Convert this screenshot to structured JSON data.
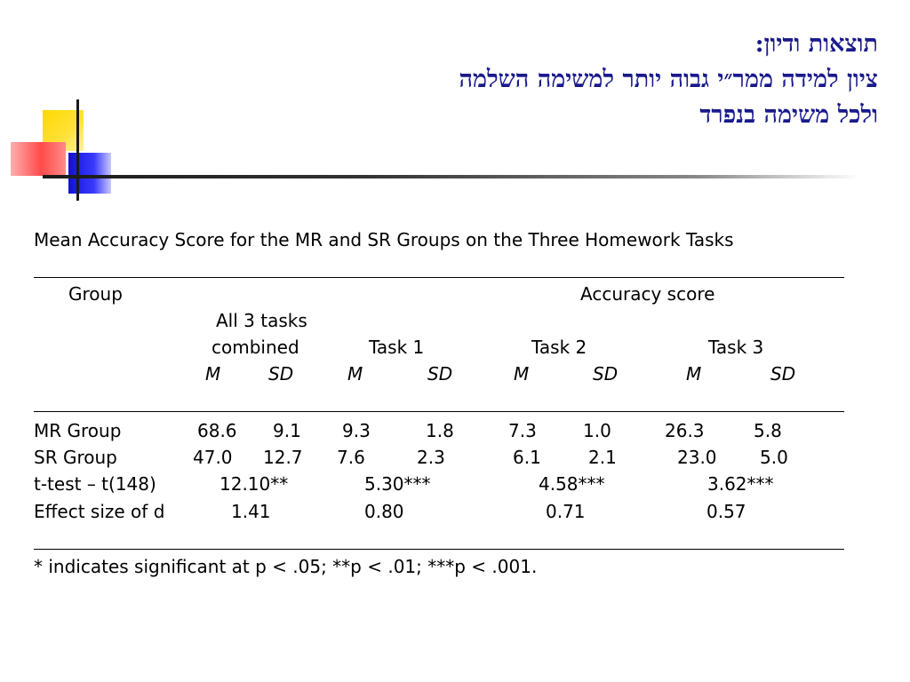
{
  "slide": {
    "title_lines": [
      "תוצאות ודיון:",
      "ציון למידה ממר״י גבוה יותר למשימה השלמה",
      "ולכל משימה בנפרד"
    ],
    "accent_color": "#1a1a8c"
  },
  "table": {
    "caption": "Mean Accuracy Score for the MR and SR Groups on the Three Homework Tasks",
    "header": {
      "group": "Group",
      "accuracy": "Accuracy score",
      "all_tasks_line1": "All 3 tasks",
      "all_tasks_line2": "combined",
      "task1": "Task 1",
      "task2": "Task 2",
      "task3": "Task 3",
      "m": "M",
      "sd": "SD"
    },
    "rows": [
      {
        "label": "MR Group",
        "all_m": "68.6",
        "all_sd": "9.1",
        "t1_m": "9.3",
        "t1_sd": "1.8",
        "t2_m": "7.3",
        "t2_sd": "1.0",
        "t3_m": "26.3",
        "t3_sd": "5.8"
      },
      {
        "label": "SR Group",
        "all_m": "47.0",
        "all_sd": "12.7",
        "t1_m": "7.6",
        "t1_sd": "2.3",
        "t2_m": "6.1",
        "t2_sd": "2.1",
        "t3_m": "23.0",
        "t3_sd": "5.0"
      }
    ],
    "ttest": {
      "label": "t-test – t(148)",
      "all": "12.10**",
      "t1": "5.30***",
      "t2": "4.58***",
      "t3": "3.62***"
    },
    "effect": {
      "label": "Effect size of d",
      "all": "1.41",
      "t1": "0.80",
      "t2": "0.71",
      "t3": "0.57"
    },
    "footnote": "* indicates significant at p < .05; **p < .01; ***p < .001."
  }
}
